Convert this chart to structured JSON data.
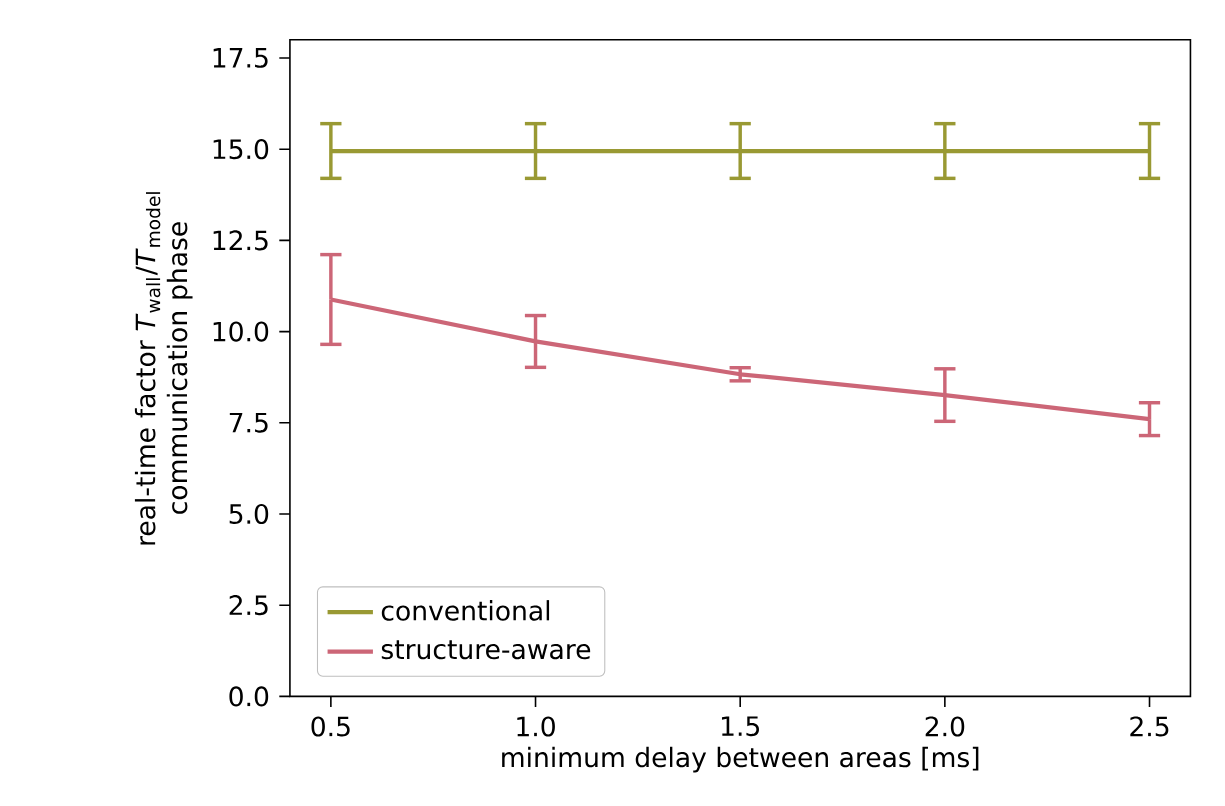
{
  "chart_data": {
    "type": "line",
    "xlabel": "minimum delay between areas [ms]",
    "ylabel": "real-time factor *T*$_{wall}$/*T*$_{model}$ communication phase",
    "x": [
      0.5,
      1.0,
      1.5,
      2.0,
      2.5
    ],
    "series": [
      {
        "name": "conventional",
        "color": "#999933",
        "values": [
          14.95,
          14.95,
          14.95,
          14.95,
          14.95
        ],
        "errors": [
          0.75,
          0.75,
          0.75,
          0.75,
          0.75
        ]
      },
      {
        "name": "structure-aware",
        "color": "#cc6677",
        "values": [
          10.88,
          9.73,
          8.83,
          8.26,
          7.6
        ],
        "errors": [
          1.23,
          0.71,
          0.18,
          0.72,
          0.45
        ]
      }
    ],
    "xlim": [
      0.4,
      2.6
    ],
    "ylim": [
      0,
      18
    ],
    "xticks": [
      {
        "value": 0.5,
        "label": "0.5"
      },
      {
        "value": 1.0,
        "label": "1.0"
      },
      {
        "value": 1.5,
        "label": "1.5"
      },
      {
        "value": 2.0,
        "label": "2.0"
      },
      {
        "value": 2.5,
        "label": "2.5"
      }
    ],
    "yticks": [
      {
        "value": 0,
        "label": "0.0"
      },
      {
        "value": 2.5,
        "label": "2.5"
      },
      {
        "value": 5,
        "label": "5.0"
      },
      {
        "value": 7.5,
        "label": "7.5"
      },
      {
        "value": 10,
        "label": "10.0"
      },
      {
        "value": 12.5,
        "label": "12.5"
      },
      {
        "value": 15,
        "label": "15.0"
      },
      {
        "value": 17.5,
        "label": "17.5"
      }
    ],
    "legend": "bottom left",
    "marker": "none",
    "line_style": "solid",
    "grid": false
  }
}
